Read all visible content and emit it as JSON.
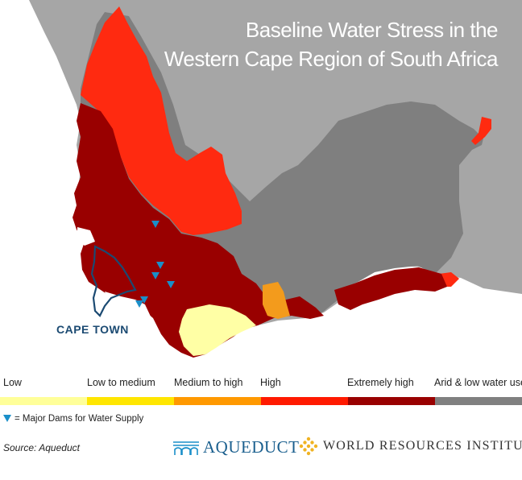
{
  "title": {
    "line1": "Baseline Water Stress in the",
    "line2": "Western Cape Region of South Africa"
  },
  "city_label": "CAPE TOWN",
  "legend": [
    {
      "label": "Low",
      "color": "#ffff99"
    },
    {
      "label": "Low to medium",
      "color": "#ffe600"
    },
    {
      "label": "Medium to high",
      "color": "#ff9900"
    },
    {
      "label": "High",
      "color": "#ff1a00"
    },
    {
      "label": "Extremely high",
      "color": "#990000"
    },
    {
      "label": "Arid & low water use",
      "color": "#808080"
    }
  ],
  "dams_legend": "= Major Dams for Water Supply",
  "source": "Source: Aqueduct",
  "logos": {
    "aqueduct": "AQUEDUCT",
    "wri": "WORLD RESOURCES INSTITUTE"
  },
  "colors": {
    "ocean": "#ffffff",
    "outside_region": "#a6a6a6",
    "arid": "#808080",
    "high": "#ff2a10",
    "extremely_high": "#990000",
    "medium_high": "#f39b1c",
    "low": "#ffffa5",
    "dam_marker": "#1a8fc9",
    "city_outline": "#1b4a72"
  }
}
